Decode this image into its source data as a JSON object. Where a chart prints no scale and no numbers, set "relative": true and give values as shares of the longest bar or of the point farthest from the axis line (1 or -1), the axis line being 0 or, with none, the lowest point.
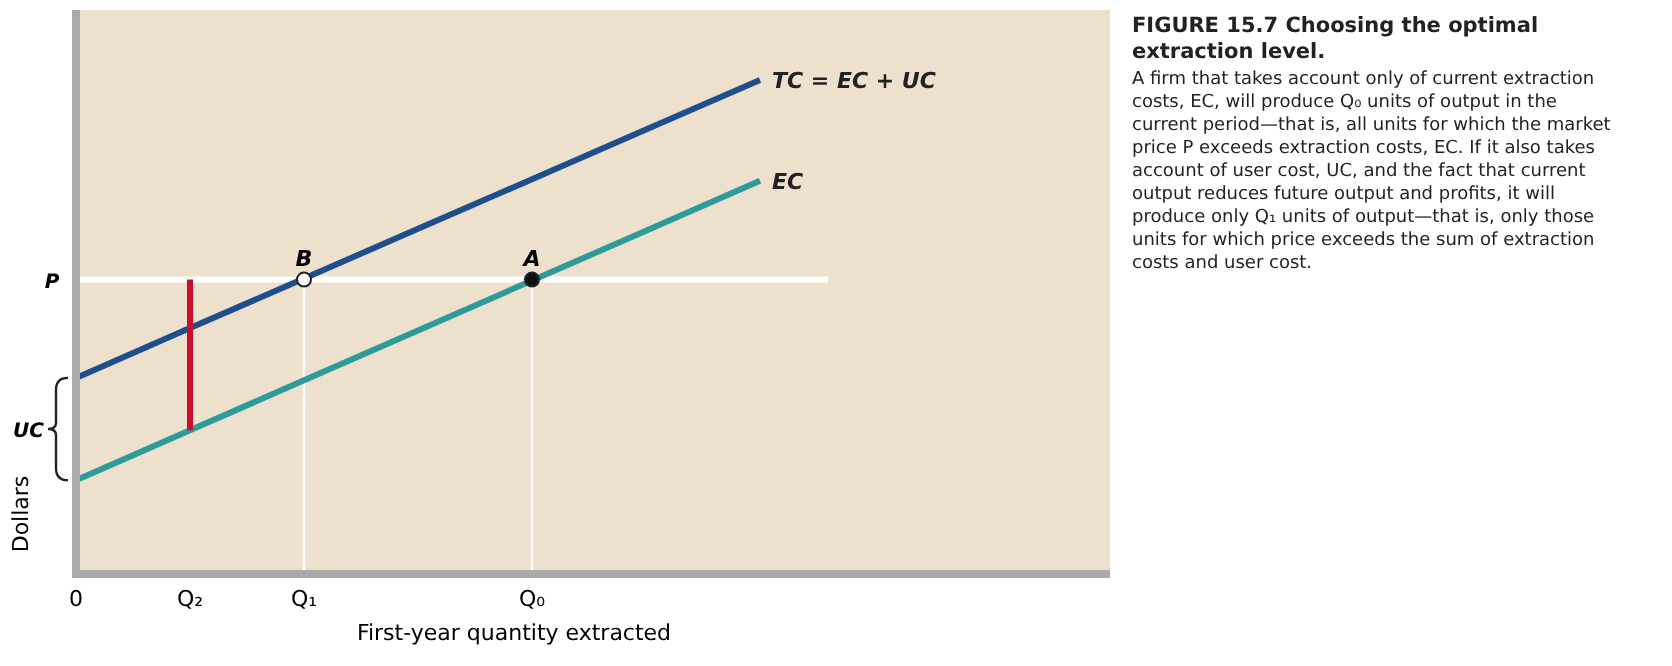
{
  "chart_data": {
    "type": "line",
    "title": "FIGURE 15.7 Choosing the optimal extraction level.",
    "subtitle": "A firm that takes account only of current extraction costs, EC, will produce Q₀ units of output in the current period—that is, all units for which the market price P exceeds extraction costs, EC. If it also takes account of user cost, UC, and the fact that current output reduces future output and profits, it will produce only Q₁ units of output—that is, only those units for which price exceeds the sum of extraction costs and user cost.",
    "xlabel": "First-year quantity extracted",
    "ylabel": "Dollars",
    "relative": true,
    "categories": [
      "0",
      "Q₂",
      "Q₁",
      null,
      "Q₀",
      null,
      null,
      null,
      null,
      null
    ],
    "series": [
      {
        "name": "TC = EC + UC",
        "color": "#1f4e8c",
        "values": [
          0.397,
          0.498,
          0.598,
          0.699,
          0.799,
          0.9,
          1.0,
          null,
          null,
          null
        ]
      },
      {
        "name": "EC",
        "color": "#2e9b9b",
        "values": [
          0.19,
          0.291,
          0.392,
          0.493,
          0.594,
          0.695,
          0.796,
          null,
          null,
          null
        ]
      },
      {
        "color": "#c8102e",
        "x": [
          "Q₂",
          "Q₂"
        ],
        "values": [
          0.291,
          0.596
        ]
      },
      {
        "color": "#ffffff",
        "x": [
          "Q₁",
          "Q₁"
        ],
        "values": [
          0,
          0.596
        ]
      },
      {
        "color": "#ffffff",
        "x": [
          "Q₀",
          "Q₀"
        ],
        "values": [
          0,
          0.596
        ]
      },
      {
        "type": "scatter",
        "color": "#ffffff",
        "x": [
          "Q₁"
        ],
        "values": [
          0.596
        ],
        "marker": "circle"
      },
      {
        "type": "scatter",
        "color": "#111111",
        "x": [
          "Q₀"
        ],
        "values": [
          0.596
        ],
        "marker": "circle"
      }
    ],
    "ref_lines": [
      {
        "axis": "y",
        "value": 0.596,
        "label": "P",
        "color": "#ffffff"
      }
    ],
    "annotations": [
      {
        "text": "B",
        "x": "Q₁",
        "y": 0.596
      },
      {
        "text": "A",
        "x": "Q₀",
        "y": 0.596
      },
      "UC"
    ]
  }
}
